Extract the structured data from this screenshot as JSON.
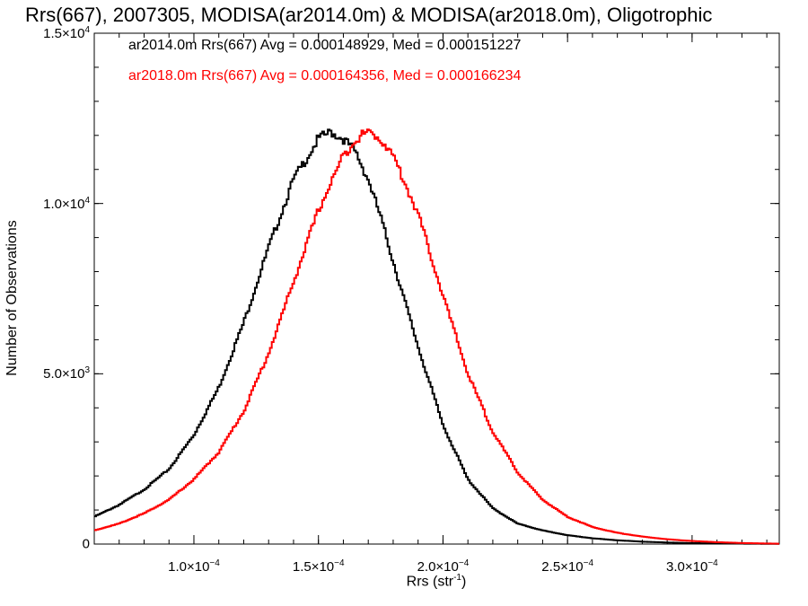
{
  "chart_data": {
    "type": "histogram",
    "title": "Rrs(667), 2007305, MODISA(ar2014.0m) & MODISA(ar2018.0m), Oligotrophic",
    "xlabel": "Rrs (str",
    "xlabel_sup": "-1",
    "xlabel_close": ")",
    "ylabel": "Number of Observations",
    "xlim": [
      6e-05,
      0.000335
    ],
    "ylim": [
      0,
      15000
    ],
    "x_ticks": [
      {
        "value": 0.0001,
        "label": "1.0×10",
        "exp": "−4"
      },
      {
        "value": 0.00015,
        "label": "1.5×10",
        "exp": "−4"
      },
      {
        "value": 0.0002,
        "label": "2.0×10",
        "exp": "−4"
      },
      {
        "value": 0.00025,
        "label": "2.5×10",
        "exp": "−4"
      },
      {
        "value": 0.0003,
        "label": "3.0×10",
        "exp": "−4"
      }
    ],
    "y_ticks": [
      {
        "value": 0,
        "label": "0",
        "exp": ""
      },
      {
        "value": 5000,
        "label": "5.0×10",
        "exp": "3"
      },
      {
        "value": 10000,
        "label": "1.0×10",
        "exp": "4"
      },
      {
        "value": 15000,
        "label": "1.5×10",
        "exp": "4"
      }
    ],
    "grid": false,
    "series": [
      {
        "name": "ar2014.0m",
        "color": "#000000",
        "x": [
          6e-05,
          7e-05,
          8e-05,
          9e-05,
          0.0001,
          0.00011,
          0.00012,
          0.00013,
          0.00014,
          0.00015,
          0.000155,
          0.00016,
          0.000165,
          0.00017,
          0.000175,
          0.00018,
          0.00019,
          0.0002,
          0.00021,
          0.00022,
          0.00023,
          0.00024,
          0.00025,
          0.00026,
          0.00027,
          0.00028,
          0.00029,
          0.0003,
          0.00031,
          0.00032,
          0.000335
        ],
        "y": [
          800,
          1150,
          1600,
          2200,
          3200,
          4600,
          6500,
          8700,
          10700,
          11900,
          12100,
          11900,
          11500,
          10700,
          9600,
          8300,
          5800,
          3500,
          1900,
          1050,
          600,
          400,
          260,
          170,
          110,
          70,
          45,
          28,
          18,
          12,
          5
        ]
      },
      {
        "name": "ar2018.0m",
        "color": "#ff0000",
        "x": [
          6e-05,
          7e-05,
          8e-05,
          9e-05,
          0.0001,
          0.00011,
          0.00012,
          0.00013,
          0.00014,
          0.00015,
          0.00016,
          0.000165,
          0.00017,
          0.000175,
          0.00018,
          0.00019,
          0.0002,
          0.00021,
          0.00022,
          0.00023,
          0.00024,
          0.00025,
          0.00026,
          0.00027,
          0.00028,
          0.00029,
          0.0003,
          0.00031,
          0.00032,
          0.000335
        ],
        "y": [
          400,
          600,
          900,
          1300,
          1900,
          2700,
          3900,
          5600,
          7700,
          9800,
          11400,
          11900,
          12100,
          11900,
          11400,
          9700,
          7300,
          5000,
          3300,
          2100,
          1300,
          800,
          500,
          330,
          220,
          140,
          90,
          55,
          30,
          10
        ]
      }
    ],
    "annotations": [
      {
        "text": "ar2014.0m Rrs(667) Avg = 0.000148929, Med = 0.000151227",
        "color": "#000000"
      },
      {
        "text": "ar2018.0m Rrs(667) Avg = 0.000164356, Med = 0.000166234",
        "color": "#ff0000"
      }
    ]
  }
}
